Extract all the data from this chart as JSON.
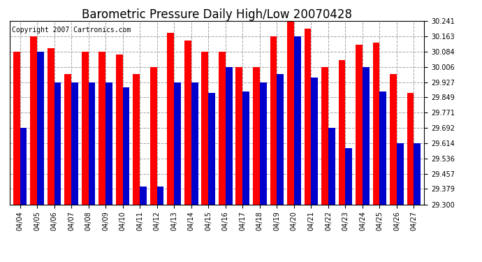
{
  "title": "Barometric Pressure Daily High/Low 20070428",
  "copyright": "Copyright 2007 Cartronics.com",
  "categories": [
    "04/04",
    "04/05",
    "04/06",
    "04/07",
    "04/08",
    "04/09",
    "04/10",
    "04/11",
    "04/12",
    "04/13",
    "04/14",
    "04/15",
    "04/16",
    "04/17",
    "04/18",
    "04/19",
    "04/20",
    "04/21",
    "04/22",
    "04/23",
    "04/24",
    "04/25",
    "04/26",
    "04/27"
  ],
  "high_values": [
    30.084,
    30.163,
    30.1,
    29.97,
    30.084,
    30.084,
    30.07,
    29.97,
    30.006,
    30.18,
    30.14,
    30.084,
    30.084,
    30.006,
    30.006,
    30.163,
    30.241,
    30.2,
    30.006,
    30.04,
    30.12,
    30.13,
    29.97,
    29.87
  ],
  "low_values": [
    29.692,
    30.084,
    29.927,
    29.927,
    29.927,
    29.927,
    29.9,
    29.39,
    29.39,
    29.927,
    29.927,
    29.87,
    30.006,
    29.88,
    29.927,
    29.97,
    30.163,
    29.95,
    29.692,
    29.59,
    30.006,
    29.88,
    29.614,
    29.614
  ],
  "ymin": 29.3,
  "ymax": 30.241,
  "yticks": [
    29.3,
    29.379,
    29.457,
    29.536,
    29.614,
    29.692,
    29.771,
    29.849,
    29.927,
    30.006,
    30.084,
    30.163,
    30.241
  ],
  "high_color": "#ff0000",
  "low_color": "#0000cc",
  "bg_color": "#ffffff",
  "grid_color": "#999999",
  "bar_width": 0.4,
  "title_fontsize": 12,
  "tick_fontsize": 7,
  "copyright_fontsize": 7
}
